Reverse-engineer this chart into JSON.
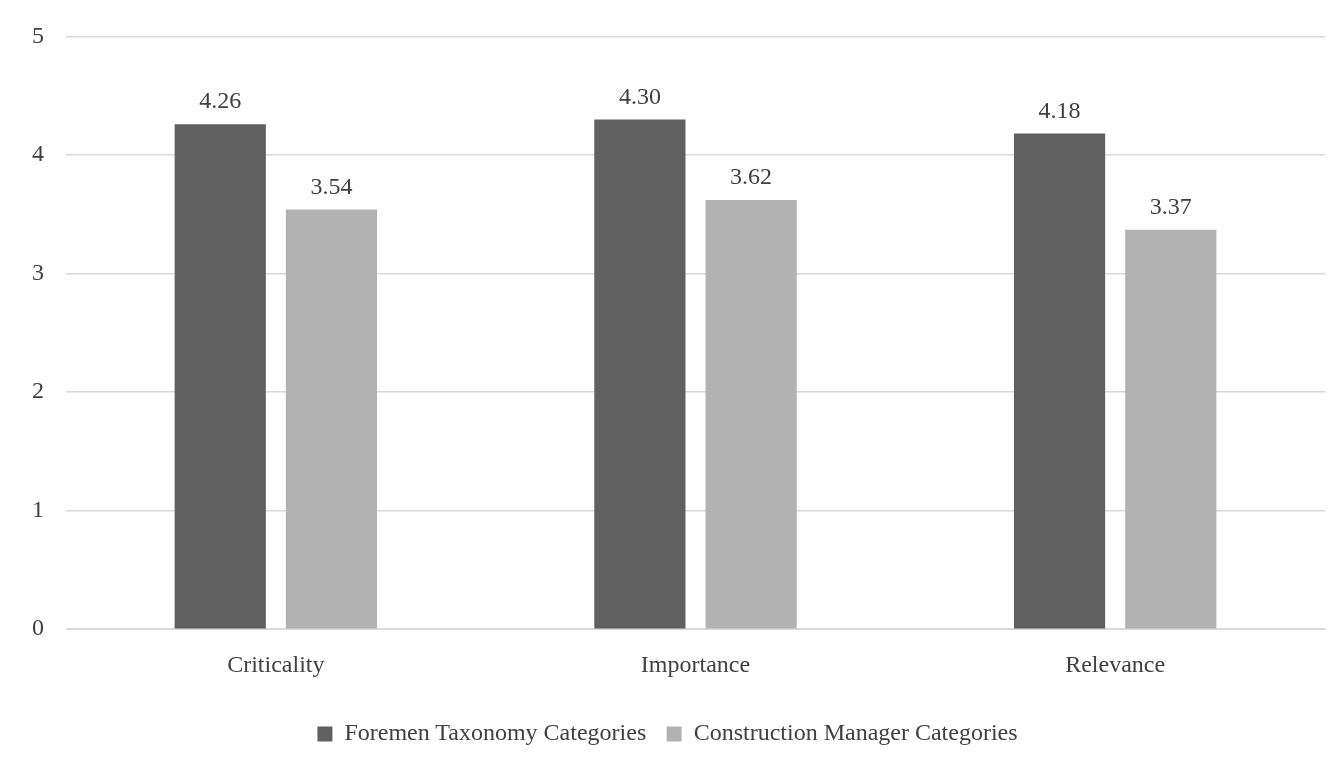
{
  "chart_data": {
    "type": "bar",
    "categories": [
      "Criticality",
      "Importance",
      "Relevance"
    ],
    "series": [
      {
        "name": "Foremen Taxonomy Categories",
        "color": "#606060",
        "values": [
          4.26,
          4.3,
          4.18
        ],
        "value_labels": [
          "4.26",
          "4.30",
          "4.18"
        ]
      },
      {
        "name": "Construction Manager Categories",
        "color": "#b2b2b2",
        "values": [
          3.54,
          3.62,
          3.37
        ],
        "value_labels": [
          "3.54",
          "3.62",
          "3.37"
        ]
      }
    ],
    "ylim": [
      0,
      5
    ],
    "yticks": [
      0,
      1,
      2,
      3,
      4,
      5
    ],
    "grid": "y",
    "legend": "bottom"
  }
}
